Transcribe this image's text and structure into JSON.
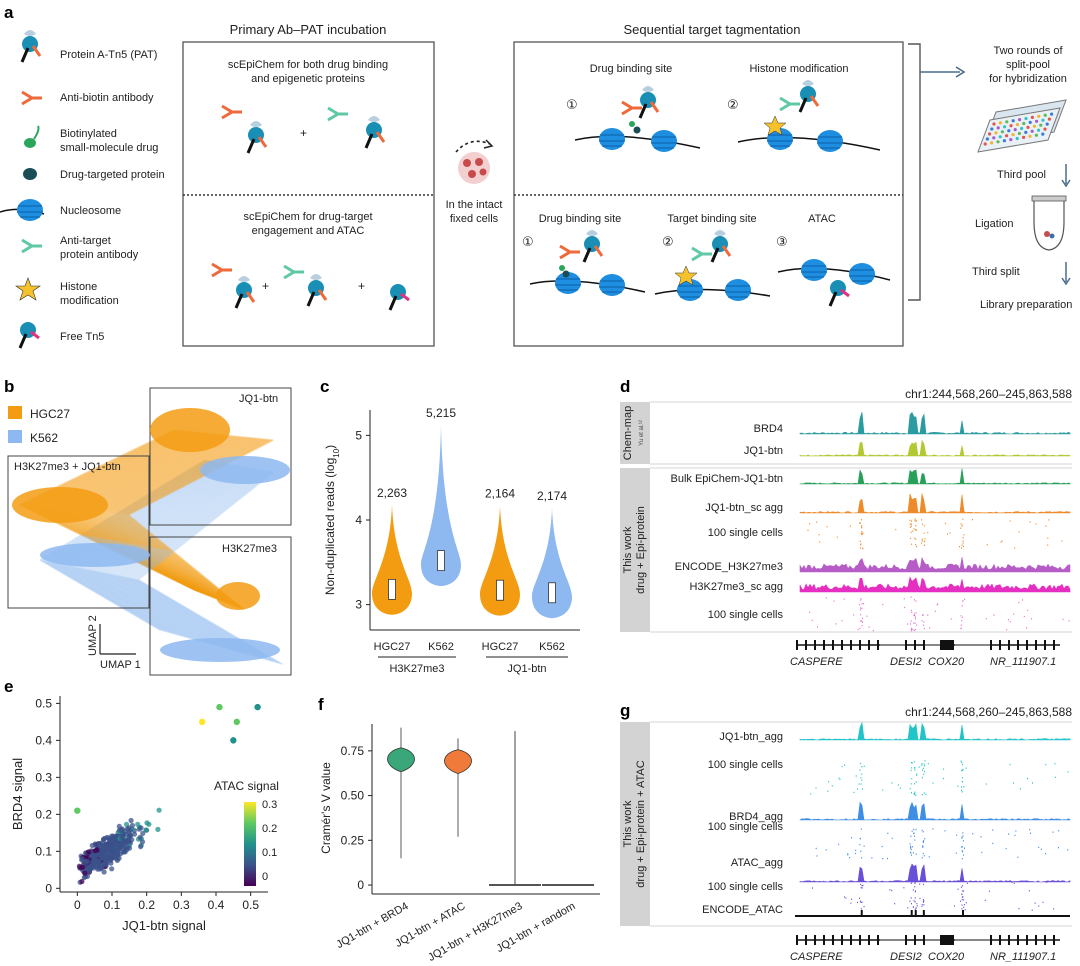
{
  "panels": {
    "a": "a",
    "b": "b",
    "c": "c",
    "d": "d",
    "e": "e",
    "f": "f",
    "g": "g"
  },
  "legend_a": [
    {
      "id": "pat",
      "lines": [
        "Protein A-Tn5 (PAT)"
      ],
      "icon": "pat-icon"
    },
    {
      "id": "antibiotin",
      "lines": [
        "Anti-biotin antibody"
      ],
      "icon": "antibody-icon"
    },
    {
      "id": "drug",
      "lines": [
        "Biotinylated",
        "small-molecule drug"
      ],
      "icon": "drug-icon"
    },
    {
      "id": "protein",
      "lines": [
        "Drug-targeted protein"
      ],
      "icon": "protein-icon"
    },
    {
      "id": "nucleosome",
      "lines": [
        "Nucleosome"
      ],
      "icon": "nucleosome-icon"
    },
    {
      "id": "antitarget",
      "lines": [
        "Anti-target",
        "protein antibody"
      ],
      "icon": "antibody-icon"
    },
    {
      "id": "histone",
      "lines": [
        "Histone",
        "modification"
      ],
      "icon": "star-icon"
    },
    {
      "id": "freetn5",
      "lines": [
        "Free Tn5"
      ],
      "icon": "tn5-icon"
    }
  ],
  "primary": {
    "title": "Primary Ab–PAT incubation",
    "top": [
      "scEpiChem for both drug binding",
      "and epigenetic proteins"
    ],
    "bottom": [
      "scEpiChem for drug-target",
      "engagement and ATAC"
    ],
    "plus": "+"
  },
  "cells": {
    "lines": [
      "In the intact",
      "fixed cells"
    ]
  },
  "sequential": {
    "title": "Sequential target tagmentation",
    "top_labels": [
      "Drug binding site",
      "Histone modification"
    ],
    "top_nums": [
      "①",
      "②"
    ],
    "bottom_labels": [
      "Drug binding site",
      "Target binding site",
      "ATAC"
    ],
    "bottom_nums": [
      "①",
      "②",
      "③"
    ]
  },
  "workflow": {
    "split_pool": [
      "Two rounds of",
      "split-pool",
      "for hybridization"
    ],
    "third_pool": "Third pool",
    "ligation": "Ligation",
    "third_split": "Third split",
    "library": "Library preparation"
  },
  "umap": {
    "legend": [
      {
        "name": "HGC27",
        "color": "#f39c12"
      },
      {
        "name": "K562",
        "color": "#8db8f0"
      }
    ],
    "labels": {
      "jq1": "JQ1-btn",
      "combo": "H3K27me3 + JQ1-btn",
      "h3": "H3K27me3"
    },
    "axes": {
      "x": "UMAP 1",
      "y": "UMAP 2"
    }
  },
  "violin_c": {
    "type": "violin",
    "ylabel": "Non-duplicated reads (log",
    "ylabel_sub": "10",
    "ylabel_end": ")",
    "ylim": [
      2.7,
      5.3
    ],
    "yticks": [
      "3",
      "4",
      "5"
    ],
    "groups": [
      {
        "name": "HGC27",
        "median": 3.18,
        "count": "2,263",
        "color": "#f39c12"
      },
      {
        "name": "K562",
        "median": 3.52,
        "count": "5,215",
        "color": "#8db8f0"
      },
      {
        "name": "HGC27",
        "median": 3.17,
        "count": "2,164",
        "color": "#f39c12"
      },
      {
        "name": "K562",
        "median": 3.14,
        "count": "2,174",
        "color": "#8db8f0"
      }
    ],
    "group_labels": [
      "H3K27me3",
      "JQ1-btn"
    ]
  },
  "tracks_d": {
    "coords": "chr1:244,568,260–245,863,588",
    "side_top": "Chem-map",
    "side_top_ref": "Yu et al.¹²",
    "side_bottom": [
      "This work",
      "drug + Epi-protein"
    ],
    "tracks": [
      {
        "label": "BRD4",
        "color": "#2a9ca1"
      },
      {
        "label": "JQ1-btn",
        "color": "#b4c832"
      },
      {
        "label": "Bulk EpiChem-JQ1-btn",
        "color": "#29a05a"
      },
      {
        "label": "JQ1-btn_sc agg",
        "color": "#ef8a2a"
      },
      {
        "label": "100 single cells",
        "color": "#ef8a2a"
      },
      {
        "label": "ENCODE_H3K27me3",
        "color": "#b65cc6"
      },
      {
        "label": "H3K27me3_sc agg",
        "color": "#e52fc1"
      },
      {
        "label": "100 single cells",
        "color": "#e56dd0"
      }
    ],
    "genes": [
      "CASPERE",
      "DESI2",
      "COX20",
      "NR_111907.1"
    ]
  },
  "scatter_e": {
    "type": "scatter",
    "xlabel": "JQ1-btn signal",
    "ylabel": "BRD4 signal",
    "xlim": [
      -0.05,
      0.55
    ],
    "ylim": [
      -0.01,
      0.52
    ],
    "xticks": [
      "0",
      "0.1",
      "0.2",
      "0.3",
      "0.4",
      "0.5"
    ],
    "yticks": [
      "0",
      "0.1",
      "0.2",
      "0.3",
      "0.4",
      "0.5"
    ],
    "colorbar": {
      "title": "ATAC signal",
      "ticks": [
        "0.3",
        "0.2",
        "0.1",
        "0"
      ]
    },
    "highlights": [
      {
        "x": 0.36,
        "y": 0.45,
        "c": 0.34
      },
      {
        "x": 0.41,
        "y": 0.49,
        "c": 0.25
      },
      {
        "x": 0.46,
        "y": 0.45,
        "c": 0.22
      },
      {
        "x": 0.52,
        "y": 0.49,
        "c": 0.18
      },
      {
        "x": 0.45,
        "y": 0.4,
        "c": 0.15
      },
      {
        "x": 0.0,
        "y": 0.21,
        "c": 0.3
      }
    ]
  },
  "violin_f": {
    "type": "violin",
    "ylabel": "Cramér's V value",
    "ylim": [
      -0.05,
      0.9
    ],
    "yticks": [
      "0",
      "0.25",
      "0.50",
      "0.75"
    ],
    "groups": [
      {
        "name": "JQ1-btn + BRD4",
        "median": 0.7,
        "color": "#3aa77a"
      },
      {
        "name": "JQ1-btn + ATAC",
        "median": 0.69,
        "color": "#ef7a3a"
      },
      {
        "name": "JQ1-btn + H3K27me3",
        "median": 0.0,
        "color": "#444444"
      },
      {
        "name": "JQ1-btn + random",
        "median": 0.0,
        "color": "#444444"
      }
    ]
  },
  "tracks_g": {
    "coords": "chr1:244,568,260–245,863,588",
    "side": [
      "This work",
      "drug + Epi-protein + ATAC"
    ],
    "tracks": [
      {
        "label": "JQ1-btn_agg",
        "color": "#22c3c9"
      },
      {
        "label": "100 single cells",
        "color": "#22c3c9"
      },
      {
        "label": "BRD4_agg",
        "color": "#3f8ee6"
      },
      {
        "label": "100 single cells",
        "color": "#3f8ee6"
      },
      {
        "label": "ATAC_agg",
        "color": "#6a4fd8"
      },
      {
        "label": "100 single cells",
        "color": "#6a4fd8"
      },
      {
        "label": "ENCODE_ATAC",
        "color": "#111111"
      }
    ],
    "genes": [
      "CASPERE",
      "DESI2",
      "COX20",
      "NR_111907.1"
    ]
  }
}
